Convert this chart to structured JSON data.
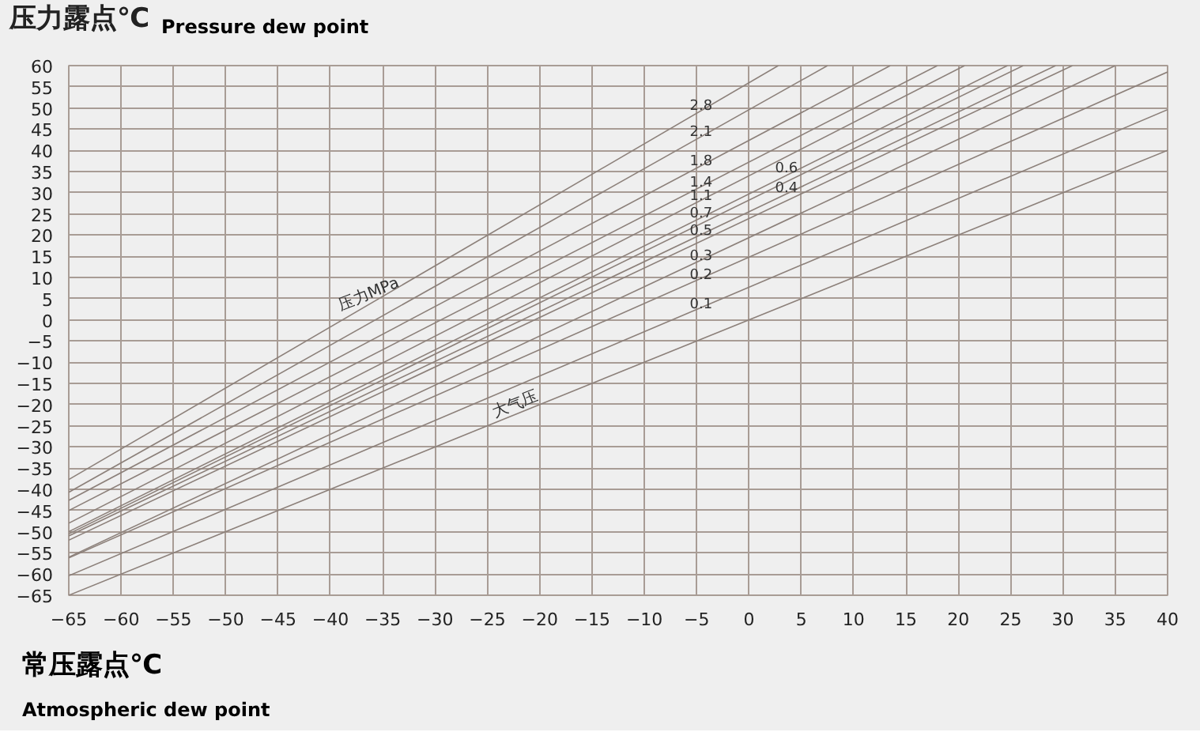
{
  "chart_data": {
    "type": "line",
    "title": "压力露点℃",
    "subtitle": "Pressure dew point",
    "xlabel": "常压露点℃\nAtmospheric dew point",
    "xlim": [
      -65,
      40
    ],
    "ylim": [
      -65,
      60
    ],
    "xticks": [
      -65,
      -60,
      -55,
      -50,
      -45,
      -40,
      -35,
      -30,
      -25,
      -20,
      -15,
      -10,
      -5,
      0,
      5,
      10,
      15,
      20,
      25,
      30,
      35,
      40
    ],
    "yticks": [
      -65,
      -60,
      -55,
      -50,
      -45,
      -40,
      -35,
      -30,
      -25,
      -20,
      -15,
      -10,
      -5,
      0,
      5,
      10,
      15,
      20,
      25,
      30,
      35,
      40,
      45,
      50,
      55,
      60
    ],
    "grid": true,
    "line_style": "solid",
    "marker": "none",
    "annotations": [
      {
        "text": "压力MPa",
        "x": -36,
        "y": 4
      },
      {
        "text": "大气压",
        "x": -22,
        "y": -22
      }
    ],
    "series": [
      {
        "name": "2.8",
        "color": "#8c807a",
        "x": [
          -65,
          2.8
        ],
        "values": [
          -37.7,
          60
        ]
      },
      {
        "name": "2.1",
        "color": "#8c807a",
        "x": [
          -65,
          7.5
        ],
        "values": [
          -40.7,
          60
        ]
      },
      {
        "name": "1.8",
        "color": "#8c807a",
        "x": [
          -65,
          13.5
        ],
        "values": [
          -42.6,
          60
        ]
      },
      {
        "name": "1.4",
        "color": "#8c807a",
        "x": [
          -65,
          18
        ],
        "values": [
          -45,
          60
        ]
      },
      {
        "name": "1.1",
        "color": "#8c807a",
        "x": [
          -65,
          20.6
        ],
        "values": [
          -48,
          60
        ]
      },
      {
        "name": "0.7",
        "color": "#8c807a",
        "x": [
          -65,
          24.7
        ],
        "values": [
          -50,
          60
        ]
      },
      {
        "name": "0.6",
        "color": "#8c807a",
        "x": [
          -65,
          26.2
        ],
        "values": [
          -50.5,
          60
        ]
      },
      {
        "name": "0.5",
        "color": "#8c807a",
        "x": [
          -65,
          29.3
        ],
        "values": [
          -51,
          60
        ]
      },
      {
        "name": "0.4",
        "color": "#8c807a",
        "x": [
          -65,
          30.9
        ],
        "values": [
          -52,
          60
        ]
      },
      {
        "name": "0.3",
        "color": "#8c807a",
        "x": [
          -65,
          35
        ],
        "values": [
          -56,
          60
        ]
      },
      {
        "name": "0.2",
        "color": "#8c807a",
        "x": [
          -65,
          40
        ],
        "values": [
          -56.2,
          58.5
        ]
      },
      {
        "name": "0.1",
        "color": "#8c807a",
        "x": [
          -65,
          40
        ],
        "values": [
          -60.4,
          49.6
        ]
      },
      {
        "color": "#8c807a",
        "x": [
          -65,
          40
        ],
        "values": [
          -65,
          40
        ]
      }
    ]
  }
}
